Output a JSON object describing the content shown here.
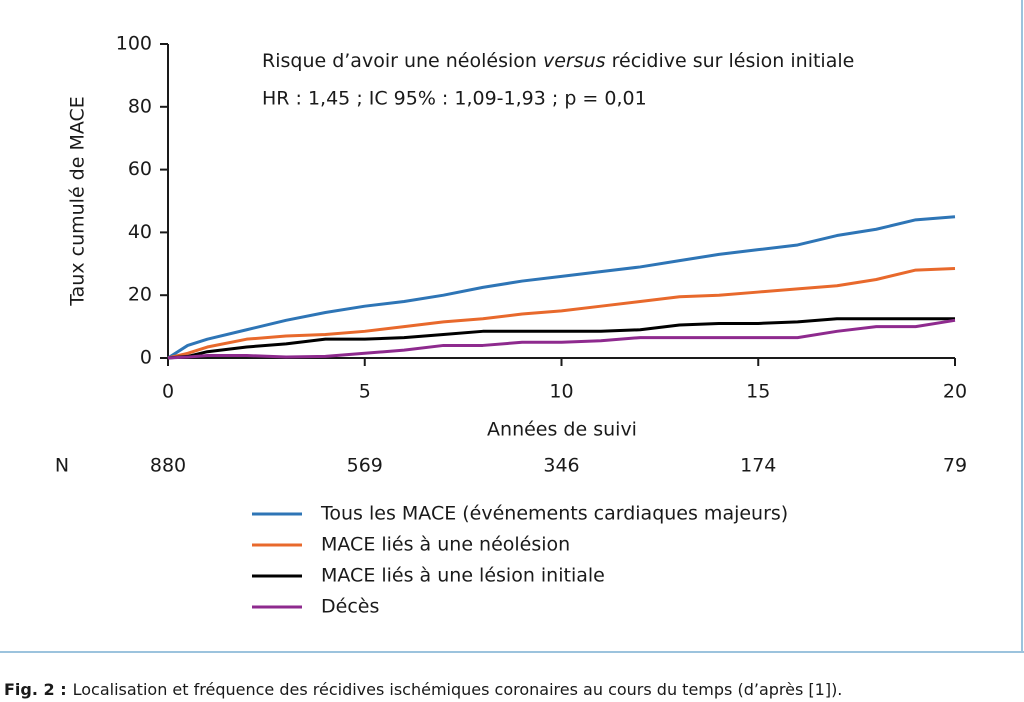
{
  "chart_data": {
    "type": "line",
    "annotation": {
      "line1": [
        "Risque d’avoir une néolésion ",
        "versus",
        " récidive sur lésion initiale"
      ],
      "line2": "HR : 1,45 ; IC 95% : 1,09-1,93 ; p = 0,01"
    },
    "x_label": "Années de suivi",
    "y_label": "Taux cumulé de MACE",
    "x": [
      0,
      0.5,
      1,
      2,
      3,
      4,
      5,
      6,
      7,
      8,
      9,
      10,
      11,
      12,
      13,
      14,
      15,
      16,
      17,
      18,
      19,
      20
    ],
    "series": [
      {
        "name": "Tous les MACE (événements cardiaques majeurs)",
        "color": "#2e75b6",
        "values": [
          0,
          4,
          6,
          9,
          12,
          14.5,
          16.5,
          18,
          20,
          22.5,
          24.5,
          26,
          27.5,
          29,
          31,
          33,
          34.5,
          36,
          39,
          41,
          44,
          45
        ]
      },
      {
        "name": "MACE liés à une néolésion",
        "color": "#e8692c",
        "values": [
          0,
          1.5,
          3.5,
          6,
          7,
          7.5,
          8.5,
          10,
          11.5,
          12.5,
          14,
          15,
          16.5,
          18,
          19.5,
          20,
          21,
          22,
          23,
          25,
          28,
          28.5
        ]
      },
      {
        "name": "MACE liés à une lésion initiale",
        "color": "#000000",
        "values": [
          0,
          0.5,
          2,
          3.5,
          4.5,
          6,
          6,
          6.5,
          7.5,
          8.5,
          8.5,
          8.5,
          8.5,
          9,
          10.5,
          11,
          11,
          11.5,
          12.5,
          12.5,
          12.5,
          12.5
        ]
      },
      {
        "name": "Décès",
        "color": "#8e2a8e",
        "values": [
          0,
          0.3,
          0.8,
          0.8,
          0.3,
          0.5,
          1.5,
          2.5,
          4,
          4,
          5,
          5,
          5.5,
          6.5,
          6.5,
          6.5,
          6.5,
          6.5,
          8.5,
          10,
          10,
          12
        ]
      }
    ],
    "xlim": [
      0,
      20
    ],
    "xticks": [
      0,
      5,
      10,
      15,
      20
    ],
    "ylim": [
      0,
      100
    ],
    "yticks": [
      0,
      20,
      40,
      60,
      80,
      100
    ],
    "grid": false,
    "legend": "bottom",
    "risk_table": {
      "label": "N",
      "values": [
        880,
        569,
        346,
        174,
        79
      ]
    },
    "caption": {
      "label": "Fig. 2 :",
      "text": "Localisation et fréquence des récidives ischémiques coronaires au cours du temps (d’après [1])."
    }
  }
}
